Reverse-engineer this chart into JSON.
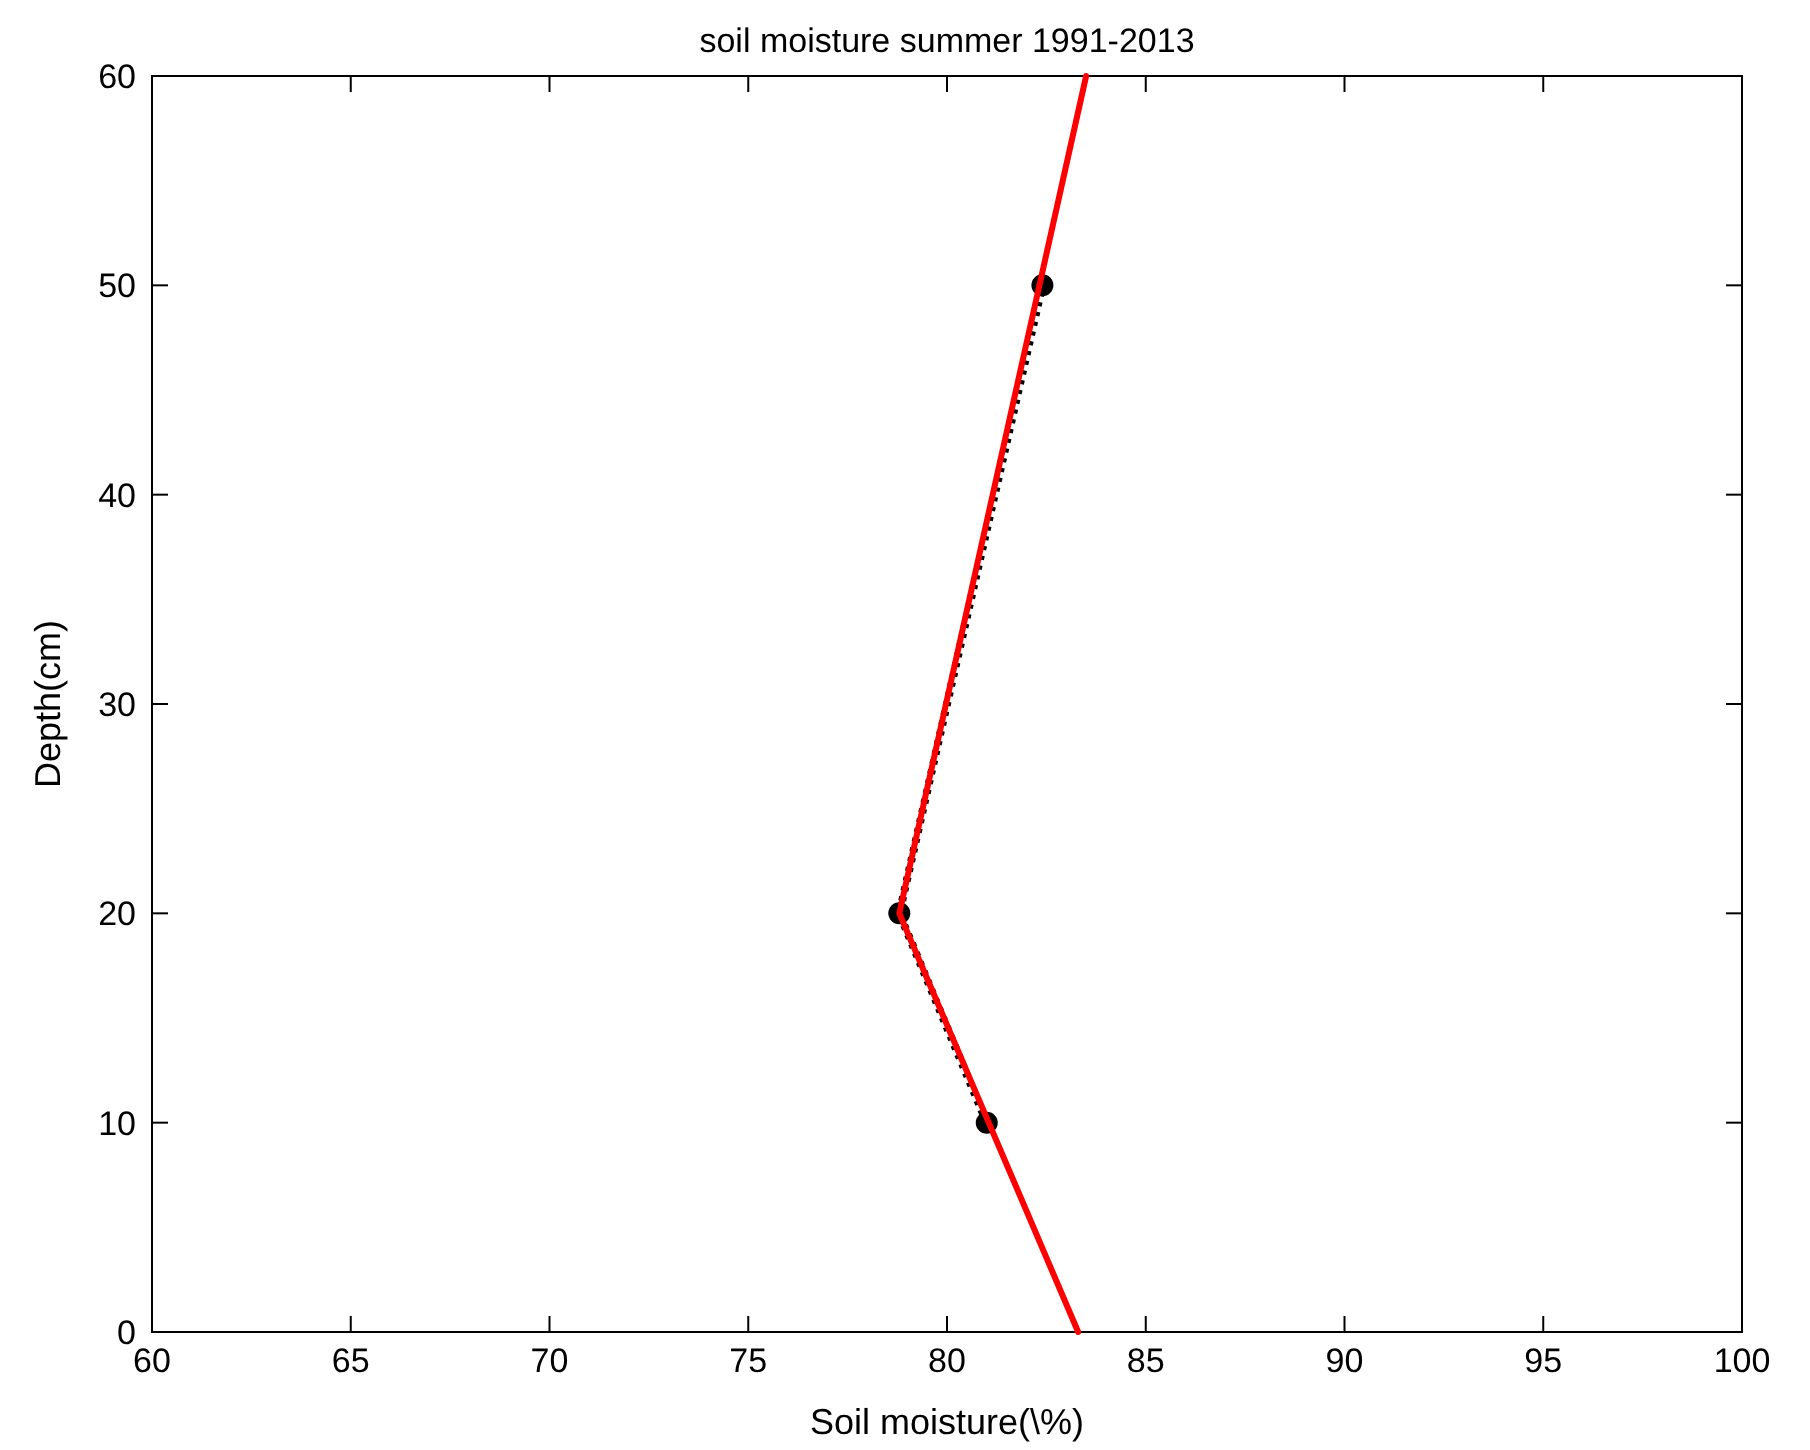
{
  "chart_data": {
    "type": "line",
    "title": "soil moisture summer 1991-2013",
    "xlabel": "Soil moisture(\\%)",
    "ylabel": "Depth(cm)",
    "xlim": [
      60,
      100
    ],
    "xticks": [
      60,
      65,
      70,
      75,
      80,
      85,
      90,
      95,
      100
    ],
    "ylim": [
      0,
      60
    ],
    "yticks": [
      0,
      10,
      20,
      30,
      40,
      50,
      60
    ],
    "grid": false,
    "series": [
      {
        "color": "#000000",
        "x": [
          81.0,
          78.8,
          82.4
        ],
        "values": [
          10,
          20,
          50
        ],
        "marker": "circle",
        "line_style": "dotted"
      },
      {
        "color": "#ff0000",
        "x": [
          83.3,
          78.8,
          83.5
        ],
        "values": [
          0,
          20,
          60
        ],
        "marker": "none",
        "line_style": "solid"
      }
    ]
  }
}
